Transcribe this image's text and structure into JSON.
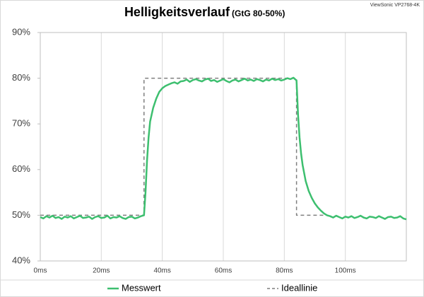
{
  "chart_data": {
    "type": "line",
    "title": "Helligkeitsverlauf",
    "subtitle": "(GtG 80-50%)",
    "watermark": "ViewSonic VP2768-4K",
    "xlim": [
      0,
      120
    ],
    "xticks": [
      {
        "value": 0,
        "label": "0ms"
      },
      {
        "value": 20,
        "label": "20ms"
      },
      {
        "value": 40,
        "label": "40ms"
      },
      {
        "value": 60,
        "label": "60ms"
      },
      {
        "value": 80,
        "label": "80ms"
      },
      {
        "value": 100,
        "label": "100ms"
      }
    ],
    "ylim": [
      40,
      90
    ],
    "yticks": [
      {
        "value": 40,
        "label": "40%"
      },
      {
        "value": 50,
        "label": "50%"
      },
      {
        "value": 60,
        "label": "60%"
      },
      {
        "value": 70,
        "label": "70%"
      },
      {
        "value": 80,
        "label": "80%"
      },
      {
        "value": 90,
        "label": "90%"
      }
    ],
    "grid": "x",
    "legend": "bottom",
    "series": [
      {
        "name": "Messwert",
        "color": "#3dbf6f",
        "dash": false,
        "x": [
          0,
          1,
          2,
          3,
          4,
          5,
          6,
          7,
          8,
          9,
          10,
          11,
          12,
          13,
          14,
          15,
          16,
          17,
          18,
          19,
          20,
          21,
          22,
          23,
          24,
          25,
          26,
          27,
          28,
          29,
          30,
          31,
          32,
          33,
          34,
          34.5,
          35,
          35.5,
          36,
          37,
          38,
          39,
          40,
          41,
          42,
          43,
          44,
          45,
          46,
          47,
          48,
          49,
          50,
          51,
          52,
          53,
          54,
          55,
          56,
          57,
          58,
          59,
          60,
          61,
          62,
          63,
          64,
          65,
          66,
          67,
          68,
          69,
          70,
          71,
          72,
          73,
          74,
          75,
          76,
          77,
          78,
          79,
          80,
          81,
          82,
          83,
          84,
          84.5,
          85,
          85.5,
          86,
          87,
          88,
          89,
          90,
          91,
          92,
          93,
          94,
          95,
          96,
          97,
          98,
          99,
          100,
          101,
          102,
          103,
          104,
          105,
          106,
          107,
          108,
          109,
          110,
          111,
          112,
          113,
          114,
          115,
          116,
          117,
          118,
          119,
          120
        ],
        "values": [
          49.6,
          49.3,
          49.8,
          49.5,
          49.9,
          49.4,
          49.6,
          49.2,
          49.7,
          49.5,
          49.8,
          49.3,
          49.6,
          49.9,
          49.4,
          49.5,
          49.7,
          49.2,
          49.6,
          49.8,
          49.4,
          49.5,
          49.9,
          49.3,
          49.6,
          49.5,
          49.8,
          49.4,
          49.2,
          49.6,
          49.7,
          49.3,
          49.5,
          49.8,
          50.0,
          55,
          62,
          67,
          70.5,
          73.5,
          75.5,
          77,
          77.8,
          78.3,
          78.6,
          78.9,
          79.1,
          78.8,
          79.3,
          79.4,
          79.7,
          79.2,
          79.6,
          79.8,
          79.5,
          79.3,
          79.7,
          79.9,
          79.4,
          79.6,
          79.2,
          79.5,
          79.8,
          79.4,
          79.1,
          79.5,
          79.7,
          79.3,
          79.6,
          79.9,
          79.5,
          79.7,
          79.4,
          79.8,
          79.6,
          79.3,
          79.7,
          79.5,
          79.9,
          79.6,
          79.8,
          79.5,
          79.7,
          80.0,
          79.8,
          80.1,
          79.5,
          72,
          67,
          63.5,
          61,
          57.5,
          55.3,
          53.8,
          52.6,
          51.7,
          51.0,
          50.4,
          50.0,
          49.8,
          49.5,
          49.9,
          49.6,
          49.3,
          49.7,
          49.5,
          49.8,
          49.4,
          49.6,
          49.9,
          49.5,
          49.3,
          49.7,
          49.6,
          49.4,
          49.8,
          49.5,
          49.2,
          49.6,
          49.7,
          49.4,
          49.5,
          49.8,
          49.3,
          49.1
        ]
      },
      {
        "name": "Ideallinie",
        "color": "#7f7f7f",
        "dash": true,
        "x": [
          0,
          34,
          34,
          84,
          84,
          93
        ],
        "values": [
          50,
          50,
          80,
          80,
          50,
          50
        ]
      }
    ]
  }
}
